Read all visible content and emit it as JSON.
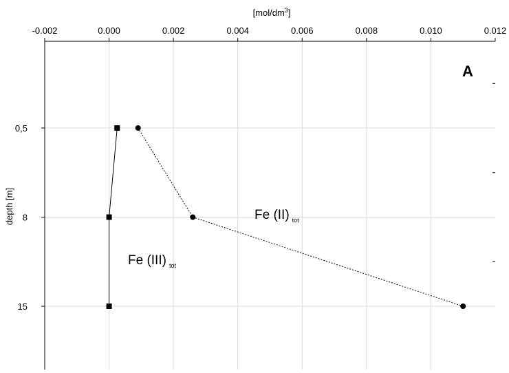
{
  "chart_data": {
    "type": "line",
    "panel_label": "A",
    "xlabel": "[mol/dm",
    "xlabel_sup": "3",
    "xlabel_end": "]",
    "ylabel": "depth [m]",
    "xlim": [
      -0.002,
      0.012
    ],
    "x_ticks": [
      "-0.002",
      "0.000",
      "0.002",
      "0.004",
      "0.006",
      "0.008",
      "0.010",
      "0.012"
    ],
    "x_tick_values": [
      -0.002,
      0,
      0.002,
      0.004,
      0.006,
      0.008,
      0.01,
      0.012
    ],
    "y_categories": [
      "0,5",
      "8",
      "15"
    ],
    "grid": true,
    "series": [
      {
        "name": "Fe (III)",
        "name_sub": "tot",
        "marker": "square",
        "line_style": "solid",
        "points": [
          {
            "x": 0.00025,
            "y": "0,5"
          },
          {
            "x": 0.0,
            "y": "8"
          },
          {
            "x": 0.0,
            "y": "15"
          }
        ]
      },
      {
        "name": "Fe (II)",
        "name_sub": "tot",
        "marker": "circle",
        "line_style": "dotted",
        "points": [
          {
            "x": 0.0009,
            "y": "0,5"
          },
          {
            "x": 0.0026,
            "y": "8"
          },
          {
            "x": 0.011,
            "y": "15"
          }
        ]
      }
    ]
  }
}
